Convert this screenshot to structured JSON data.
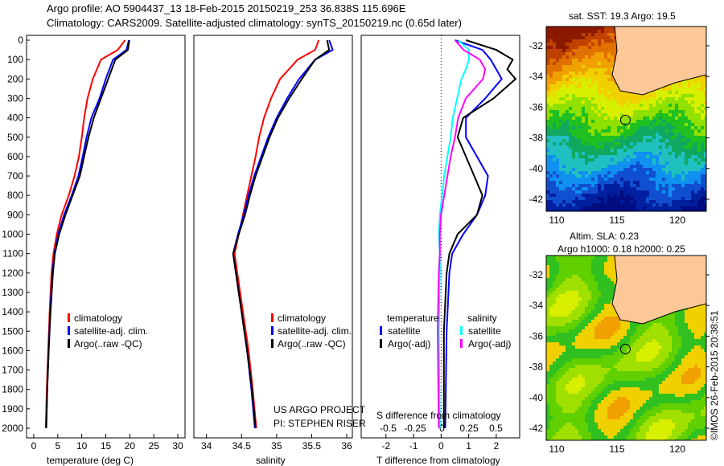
{
  "title_line1": "Argo profile: AO 5904437_13 18-Feb-2015 20150219_253 36.838S 115.696E",
  "title_line2": "Climatology: CARS2009. Satellite-adjusted climatology: synTS_20150219.nc (0.65d later)",
  "credit": "©IMOS 26-Feb-2015 20:38:51",
  "colors": {
    "climatology": "#ff0000",
    "satellite": "#0000ff",
    "argo": "#000000",
    "sal_sat": "#00ffff",
    "sal_argo": "#ff00ff"
  },
  "chart_data": [
    {
      "type": "line",
      "xlabel": "temperature (deg C)",
      "ylabel": "",
      "xlim": [
        -1,
        31
      ],
      "ylim": [
        2050,
        0
      ],
      "xticks": [
        0,
        5,
        10,
        15,
        20,
        25,
        30
      ],
      "yticks": [
        0,
        100,
        200,
        300,
        400,
        500,
        600,
        700,
        800,
        900,
        1000,
        1100,
        1200,
        1300,
        1400,
        1500,
        1600,
        1700,
        1800,
        1900,
        2000
      ],
      "depth": [
        0,
        50,
        100,
        200,
        300,
        400,
        500,
        600,
        700,
        800,
        900,
        1000,
        1100,
        1200,
        1400,
        1600,
        1800,
        2000
      ],
      "series": [
        {
          "name": "climatology",
          "color": "#ff0000",
          "values": [
            19,
            17.5,
            14,
            12.3,
            11.2,
            10.5,
            10,
            9.4,
            8.5,
            7.3,
            5.8,
            4.8,
            4.1,
            3.7,
            3.3,
            3.0,
            2.7,
            2.5
          ]
        },
        {
          "name": "satellite-adj. clim.",
          "color": "#0000ff",
          "values": [
            19.8,
            19.3,
            16.5,
            15,
            13.7,
            12,
            11,
            10.2,
            9.3,
            7.9,
            6.3,
            5.1,
            4.3,
            3.9,
            3.4,
            3.1,
            2.8,
            2.6
          ]
        },
        {
          "name": "Argo(..raw -QC)",
          "color": "#000000",
          "values": [
            19.9,
            19.6,
            17,
            15.5,
            14,
            12.5,
            11.4,
            10.5,
            9.6,
            8.1,
            6.6,
            5.3,
            4.4,
            4.0,
            3.5,
            3.1,
            2.8,
            2.6
          ]
        }
      ]
    },
    {
      "type": "line",
      "xlabel": "salinity",
      "xlim": [
        33.8,
        36.1
      ],
      "ylim": [
        2050,
        0
      ],
      "xticks": [
        34,
        34.5,
        35,
        35.5,
        36
      ],
      "yticks": [],
      "depth": [
        0,
        50,
        100,
        200,
        300,
        400,
        500,
        600,
        700,
        800,
        900,
        1000,
        1100,
        1200,
        1400,
        1600,
        1800,
        2000
      ],
      "series": [
        {
          "name": "climatology",
          "color": "#ff0000",
          "values": [
            35.6,
            35.55,
            35.3,
            35.05,
            34.92,
            34.82,
            34.75,
            34.7,
            34.64,
            34.58,
            34.52,
            34.46,
            34.4,
            34.44,
            34.52,
            34.6,
            34.66,
            34.71
          ]
        },
        {
          "name": "satellite-adj. clim.",
          "color": "#0000ff",
          "values": [
            35.75,
            35.8,
            35.55,
            35.32,
            35.15,
            35.0,
            34.88,
            34.78,
            34.68,
            34.6,
            34.53,
            34.45,
            34.38,
            34.42,
            34.5,
            34.58,
            34.64,
            34.69
          ]
        },
        {
          "name": "Argo(..raw -QC)",
          "color": "#000000",
          "values": [
            35.72,
            35.75,
            35.55,
            35.36,
            35.18,
            35.02,
            34.9,
            34.8,
            34.7,
            34.62,
            34.55,
            34.46,
            34.38,
            34.42,
            34.5,
            34.58,
            34.65,
            34.7
          ]
        }
      ]
    },
    {
      "type": "line",
      "xlabel": "T difference from climatology",
      "x2label": "S difference from climatology",
      "xlim": [
        -2.9,
        2.9
      ],
      "ylim": [
        2050,
        0
      ],
      "xticks": [
        -2,
        -1,
        0,
        1,
        2
      ],
      "x2ticks": [
        -0.5,
        -0.25,
        0,
        0.25,
        0.5
      ],
      "depth": [
        0,
        50,
        100,
        150,
        200,
        300,
        400,
        500,
        600,
        700,
        800,
        900,
        1000,
        1100,
        1200,
        1500,
        2000
      ],
      "series": [
        {
          "name": "temperature satellite",
          "axis": "T",
          "color": "#0000ff",
          "values": [
            0.5,
            1.5,
            1.8,
            2.0,
            2.2,
            1.6,
            0.9,
            0.9,
            1.3,
            1.7,
            1.6,
            1.3,
            0.8,
            0.4,
            0.3,
            0.2,
            0.15
          ]
        },
        {
          "name": "temperature Argo(-adj)",
          "axis": "T",
          "color": "#000000",
          "values": [
            0.9,
            2.0,
            2.6,
            2.4,
            2.7,
            1.9,
            0.8,
            0.6,
            0.9,
            1.2,
            1.5,
            1.3,
            0.6,
            0.3,
            0.2,
            0.1,
            0.1
          ]
        },
        {
          "name": "salinity satellite",
          "axis": "S",
          "color": "#00ffff",
          "values": [
            0.15,
            0.25,
            0.25,
            0.22,
            0.18,
            0.14,
            0.1,
            0.08,
            0.05,
            0.02,
            0.0,
            -0.02,
            -0.03,
            -0.02,
            -0.02,
            -0.03,
            -0.02
          ]
        },
        {
          "name": "salinity Argo(-adj)",
          "axis": "S",
          "color": "#ff00ff",
          "values": [
            0.12,
            0.2,
            0.35,
            0.4,
            0.38,
            0.22,
            0.15,
            0.12,
            0.08,
            0.05,
            0.02,
            -0.01,
            -0.02,
            -0.02,
            -0.03,
            -0.04,
            -0.03
          ]
        }
      ]
    }
  ],
  "legend1": [
    "climatology",
    "satellite-adj. clim.",
    "Argo(..raw -QC)"
  ],
  "legend3": {
    "temp_head": "temperature",
    "sal_head": "salinity",
    "items": [
      "satellite",
      "Argo(-adj)",
      "satellite",
      "Argo(-adj)"
    ]
  },
  "project": [
    "US ARGO PROJECT",
    "PI: STEPHEN RISER"
  ],
  "map1": {
    "title": "sat. SST: 19.3 Argo: 19.5",
    "lon_ticks": [
      "110",
      "115",
      "120"
    ],
    "lat_ticks": [
      "-32",
      "-34",
      "-36",
      "-38",
      "-40",
      "-42"
    ]
  },
  "map2": {
    "title1": "Altim. SLA: 0.23",
    "title2": "Argo h1000: 0.18 h2000: 0.25",
    "lon_ticks": [
      "110",
      "115",
      "120"
    ],
    "lat_ticks": [
      "-32",
      "-34",
      "-36",
      "-38",
      "-40",
      "-42"
    ]
  }
}
